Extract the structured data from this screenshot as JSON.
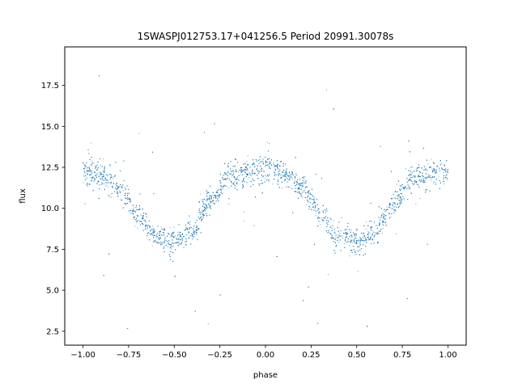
{
  "chart_data": {
    "type": "scatter",
    "title": "1SWASPJ012753.17+041256.5 Period 20991.30078s",
    "xlabel": "phase",
    "ylabel": "flux",
    "xlim": [
      -1.1,
      1.1
    ],
    "ylim": [
      1.65,
      19.85
    ],
    "xticks": [
      -1.0,
      -0.75,
      -0.5,
      -0.25,
      0.0,
      0.25,
      0.5,
      0.75,
      1.0
    ],
    "xtick_labels": [
      "−1.00",
      "−0.75",
      "−0.50",
      "−0.25",
      "0.00",
      "0.25",
      "0.50",
      "0.75",
      "1.00"
    ],
    "yticks": [
      2.5,
      5.0,
      7.5,
      10.0,
      12.5,
      15.0,
      17.5
    ],
    "ytick_labels": [
      "2.5",
      "5.0",
      "7.5",
      "10.0",
      "12.5",
      "15.0",
      "17.5"
    ],
    "grid": false,
    "legend": "none",
    "point_color": "#1f77b4",
    "series": [
      {
        "x": [
          -1.0,
          -0.9,
          -0.8,
          -0.7,
          -0.6,
          -0.5,
          -0.4,
          -0.3,
          -0.2,
          -0.1,
          0.0,
          0.1,
          0.2,
          0.3,
          0.4,
          0.5,
          0.6,
          0.7,
          0.8,
          0.9,
          1.0
        ],
        "values": [
          12.3,
          12.0,
          11.2,
          9.6,
          8.3,
          8.0,
          8.6,
          10.5,
          11.9,
          12.2,
          12.4,
          12.1,
          11.3,
          9.8,
          8.4,
          8.0,
          8.5,
          10.3,
          11.8,
          12.2,
          12.3
        ]
      }
    ]
  }
}
